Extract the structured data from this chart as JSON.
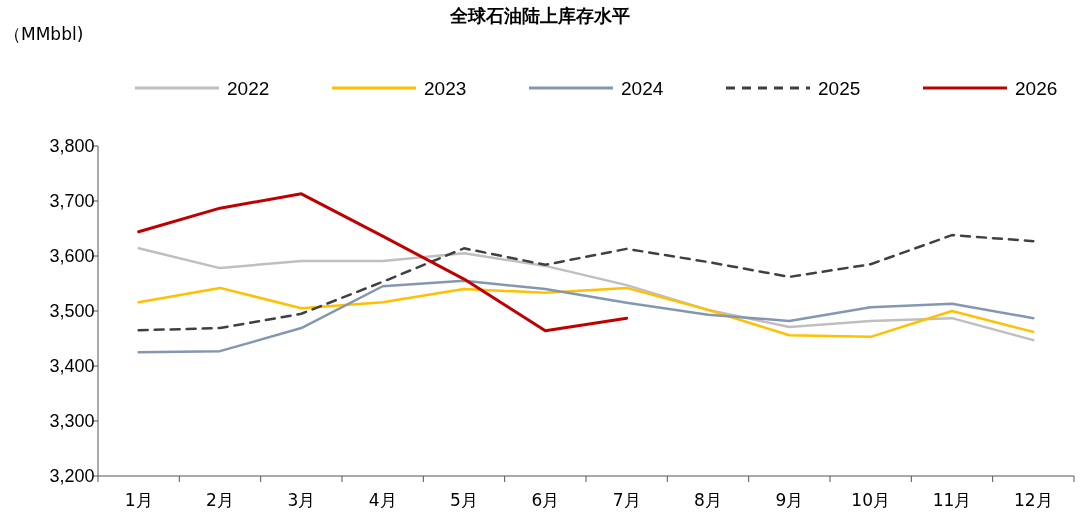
{
  "chart_data": {
    "type": "line",
    "title": "全球石油陆上库存水平",
    "annotations": [
      "（MMbbl)"
    ],
    "categories": [
      "1月",
      "2月",
      "3月",
      "4月",
      "5月",
      "6月",
      "7月",
      "8月",
      "9月",
      "10月",
      "11月",
      "12月"
    ],
    "series": [
      {
        "name": "2022",
        "color": "#bfbfbf",
        "values": [
          3614,
          3578,
          3591,
          3591,
          3605,
          3582,
          3547,
          3502,
          3471,
          3482,
          3487,
          3447
        ]
      },
      {
        "name": "2023",
        "color": "#ffc000",
        "values": [
          3516,
          3542,
          3505,
          3516,
          3540,
          3533,
          3542,
          3502,
          3456,
          3453,
          3500,
          3462
        ]
      },
      {
        "name": "2024",
        "color": "#8497b0",
        "values": [
          3425,
          3427,
          3469,
          3545,
          3555,
          3540,
          3515,
          3493,
          3482,
          3507,
          3513,
          3487
        ]
      },
      {
        "name": "2025",
        "color": "#404040",
        "line_style": "dashed",
        "values": [
          3465,
          3469,
          3495,
          3553,
          3614,
          3584,
          3613,
          3589,
          3562,
          3585,
          3638,
          3627
        ]
      },
      {
        "name": "2026",
        "color": "#c00000",
        "values": [
          3644,
          3687,
          3713,
          3636,
          3558,
          3464,
          3487,
          null,
          null,
          null,
          null,
          null
        ]
      }
    ],
    "ylim": [
      3200,
      3800
    ],
    "yticks": [
      {
        "value": 3200,
        "label": "3,200"
      },
      {
        "value": 3300,
        "label": "3,300"
      },
      {
        "value": 3400,
        "label": "3,400"
      },
      {
        "value": 3500,
        "label": "3,500"
      },
      {
        "value": 3600,
        "label": "3,600"
      },
      {
        "value": 3700,
        "label": "3,700"
      },
      {
        "value": 3800,
        "label": "3,800"
      }
    ],
    "legend": "top",
    "grid": false,
    "marker": "none"
  }
}
